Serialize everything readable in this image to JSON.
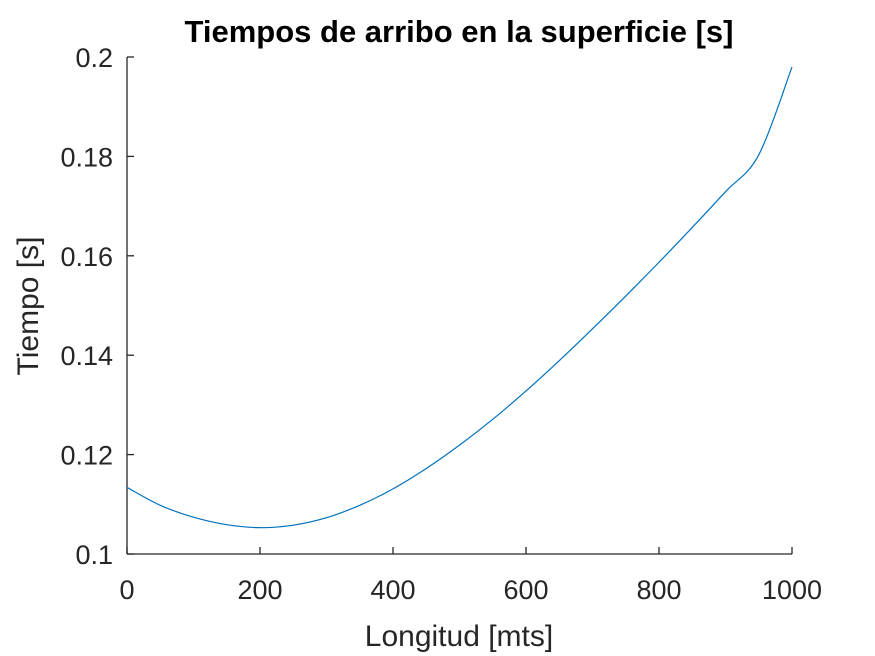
{
  "chart_data": {
    "type": "line",
    "title": "Tiempos de arribo en la superficie [s]",
    "xlabel": "Longitud [mts]",
    "ylabel": "Tiempo [s]",
    "xlim": [
      0,
      1000
    ],
    "ylim": [
      0.1,
      0.2
    ],
    "xticks": [
      0,
      200,
      400,
      600,
      800,
      1000
    ],
    "xtick_labels": [
      "0",
      "200",
      "400",
      "600",
      "800",
      "1000"
    ],
    "yticks": [
      0.1,
      0.12,
      0.14,
      0.16,
      0.18,
      0.2
    ],
    "ytick_labels": [
      "0.1",
      "0.12",
      "0.14",
      "0.16",
      "0.18",
      "0.2"
    ],
    "grid": false,
    "legend": "none",
    "series": [
      {
        "color": "#0072BD",
        "x": [
          0,
          50,
          100,
          150,
          200,
          250,
          300,
          350,
          400,
          450,
          500,
          550,
          600,
          650,
          700,
          750,
          800,
          850,
          900,
          950,
          1000
        ],
        "y": [
          0.1134,
          0.1098,
          0.1074,
          0.1059,
          0.1053,
          0.1058,
          0.1073,
          0.1098,
          0.1131,
          0.1172,
          0.1219,
          0.1271,
          0.1328,
          0.1389,
          0.1453,
          0.1519,
          0.1587,
          0.1657,
          0.1729,
          0.1803,
          0.198
        ]
      }
    ]
  }
}
